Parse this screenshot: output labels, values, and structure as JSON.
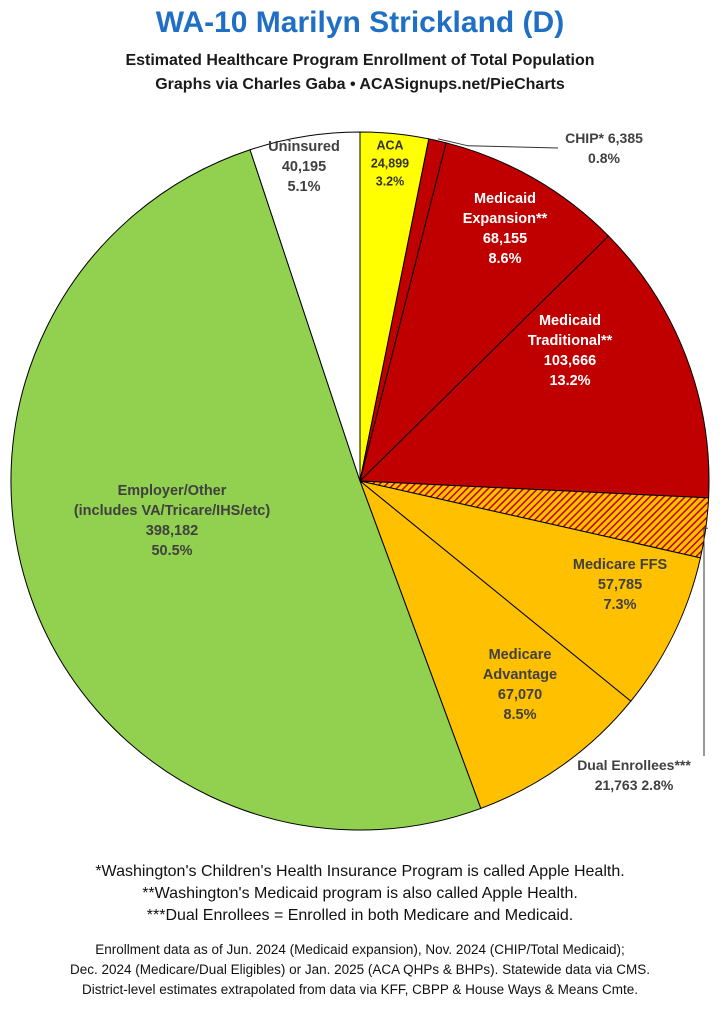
{
  "header": {
    "title": "WA-10 Marilyn Strickland (D)",
    "subtitle": "Estimated Healthcare Program Enrollment of Total Population",
    "credit": "Graphs via Charles Gaba   •   ACASignups.net/PieCharts"
  },
  "chart_data": {
    "type": "pie",
    "start_angle": "12 o'clock",
    "direction": "clockwise",
    "slices": [
      {
        "name": "ACA",
        "value": 24899,
        "percent": 3.2,
        "color": "#ffff00",
        "label_lines": [
          "ACA",
          "24,899",
          "3.2%"
        ],
        "label_color": "#333333"
      },
      {
        "name": "CHIP*",
        "value": 6385,
        "percent": 0.8,
        "color": "#c00000",
        "label_lines": [
          "CHIP* 6,385",
          "0.8%"
        ],
        "label_color": "#404040",
        "callout": true
      },
      {
        "name": "Medicaid Expansion**",
        "value": 68155,
        "percent": 8.6,
        "color": "#c00000",
        "label_lines": [
          "Medicaid",
          "Expansion**",
          "68,155",
          "8.6%"
        ],
        "label_color": "#ffffff"
      },
      {
        "name": "Medicaid Traditional**",
        "value": 103666,
        "percent": 13.2,
        "color": "#c00000",
        "label_lines": [
          "Medicaid",
          "Traditional**",
          "103,666",
          "13.2%"
        ],
        "label_color": "#ffffff"
      },
      {
        "name": "Dual Enrollees***",
        "value": 21763,
        "percent": 2.8,
        "color": "#ffc000",
        "pattern": "hatched-red",
        "label_lines": [
          "Dual Enrollees***",
          "21,763 2.8%"
        ],
        "label_color": "#404040",
        "callout": true
      },
      {
        "name": "Medicare FFS",
        "value": 57785,
        "percent": 7.3,
        "color": "#ffc000",
        "label_lines": [
          "Medicare FFS",
          "57,785",
          "7.3%"
        ],
        "label_color": "#404040"
      },
      {
        "name": "Medicare Advantage",
        "value": 67070,
        "percent": 8.5,
        "color": "#ffc000",
        "label_lines": [
          "Medicare",
          "Advantage",
          "67,070",
          "8.5%"
        ],
        "label_color": "#404040"
      },
      {
        "name": "Employer/Other (includes VA/Tricare/IHS/etc)",
        "value": 398182,
        "percent": 50.5,
        "color": "#92d050",
        "label_lines": [
          "Employer/Other",
          "(includes VA/Tricare/IHS/etc)",
          "398,182",
          "50.5%"
        ],
        "label_color": "#404040"
      },
      {
        "name": "Uninsured",
        "value": 40195,
        "percent": 5.1,
        "color": "#ffffff",
        "label_lines": [
          "Uninsured",
          "40,195",
          "5.1%"
        ],
        "label_color": "#404040"
      }
    ]
  },
  "footnotes": [
    "*Washington's Children's Health Insurance Program is called Apple Health.",
    "**Washington's Medicaid program is also called Apple Health.",
    "***Dual Enrollees = Enrolled in both Medicare and Medicaid."
  ],
  "sources": [
    "Enrollment data as of Jun. 2024 (Medicaid expansion), Nov. 2024 (CHIP/Total Medicaid);",
    "Dec. 2024 (Medicare/Dual Eligibles) or Jan. 2025 (ACA QHPs & BHPs). Statewide data via CMS.",
    "District-level estimates extrapolated from data via KFF, CBPP & House Ways & Means Cmte."
  ]
}
